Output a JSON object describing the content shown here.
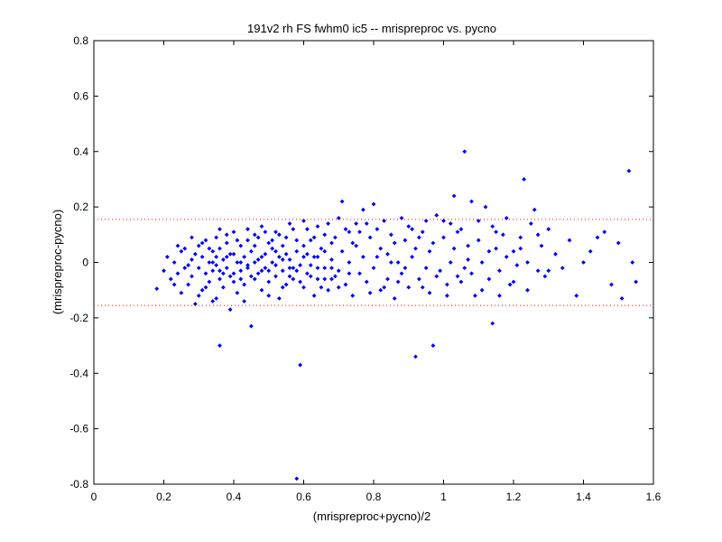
{
  "chart_data": {
    "type": "scatter",
    "title": "191v2 rh FS fwhm0 ic5 -- mrispreproc vs. pycno",
    "xlabel": "(mrispreproc+pycno)/2",
    "ylabel": "(mrispreproc-pycno)",
    "xlim": [
      0,
      1.6
    ],
    "ylim": [
      -0.8,
      0.8
    ],
    "xticks": [
      "0",
      "0.2",
      "0.4",
      "0.6",
      "0.8",
      "1",
      "1.2",
      "1.4",
      "1.6"
    ],
    "yticks": [
      "0.8",
      "0.6",
      "0.4",
      "0.2",
      "0",
      "-0.2",
      "-0.4",
      "-0.6",
      "-0.8"
    ],
    "grid": false,
    "marker_color": "#0000ff",
    "reference_lines": [
      {
        "y": 0.155,
        "color": "#ff0000",
        "style": "dotted"
      },
      {
        "y": -0.155,
        "color": "#ff0000",
        "style": "dotted"
      }
    ],
    "points": [
      [
        0.18,
        -0.095
      ],
      [
        0.2,
        -0.03
      ],
      [
        0.22,
        -0.06
      ],
      [
        0.23,
        0.0
      ],
      [
        0.24,
        -0.04
      ],
      [
        0.25,
        0.04
      ],
      [
        0.25,
        -0.11
      ],
      [
        0.26,
        -0.02
      ],
      [
        0.26,
        0.05
      ],
      [
        0.27,
        -0.08
      ],
      [
        0.28,
        0.01
      ],
      [
        0.28,
        -0.05
      ],
      [
        0.29,
        0.03
      ],
      [
        0.29,
        -0.15
      ],
      [
        0.3,
        -0.02
      ],
      [
        0.3,
        0.06
      ],
      [
        0.31,
        -0.1
      ],
      [
        0.31,
        0.02
      ],
      [
        0.32,
        -0.04
      ],
      [
        0.32,
        0.08
      ],
      [
        0.33,
        0.0
      ],
      [
        0.33,
        -0.07
      ],
      [
        0.34,
        0.04
      ],
      [
        0.34,
        -0.03
      ],
      [
        0.35,
        0.09
      ],
      [
        0.35,
        -0.13
      ],
      [
        0.35,
        -0.01
      ],
      [
        0.36,
        -0.3
      ],
      [
        0.36,
        0.05
      ],
      [
        0.36,
        -0.06
      ],
      [
        0.37,
        0.01
      ],
      [
        0.37,
        -0.09
      ],
      [
        0.38,
        0.07
      ],
      [
        0.38,
        -0.02
      ],
      [
        0.39,
        0.03
      ],
      [
        0.39,
        -0.05
      ],
      [
        0.4,
        0.11
      ],
      [
        0.4,
        -0.04
      ],
      [
        0.41,
        0.0
      ],
      [
        0.41,
        -0.11
      ],
      [
        0.42,
        0.06
      ],
      [
        0.42,
        -0.03
      ],
      [
        0.43,
        0.02
      ],
      [
        0.43,
        -0.08
      ],
      [
        0.44,
        0.08
      ],
      [
        0.44,
        -0.01
      ],
      [
        0.45,
        -0.23
      ],
      [
        0.45,
        0.04
      ],
      [
        0.46,
        -0.06
      ],
      [
        0.46,
        0.1
      ],
      [
        0.47,
        0.01
      ],
      [
        0.47,
        -0.04
      ],
      [
        0.48,
        0.13
      ],
      [
        0.48,
        -0.1
      ],
      [
        0.49,
        0.03
      ],
      [
        0.49,
        -0.02
      ],
      [
        0.5,
        0.07
      ],
      [
        0.5,
        -0.07
      ],
      [
        0.51,
        0.0
      ],
      [
        0.51,
        0.05
      ],
      [
        0.52,
        -0.05
      ],
      [
        0.52,
        0.11
      ],
      [
        0.53,
        0.02
      ],
      [
        0.53,
        -0.13
      ],
      [
        0.54,
        0.06
      ],
      [
        0.54,
        -0.03
      ],
      [
        0.55,
        0.09
      ],
      [
        0.55,
        -0.08
      ],
      [
        0.56,
        0.01
      ],
      [
        0.56,
        -0.02
      ],
      [
        0.57,
        0.12
      ],
      [
        0.57,
        -0.06
      ],
      [
        0.58,
        -0.78
      ],
      [
        0.58,
        0.04
      ],
      [
        0.59,
        -0.37
      ],
      [
        0.59,
        -0.01
      ],
      [
        0.6,
        0.15
      ],
      [
        0.6,
        -0.09
      ],
      [
        0.61,
        0.03
      ],
      [
        0.61,
        -0.04
      ],
      [
        0.62,
        0.08
      ],
      [
        0.63,
        -0.12
      ],
      [
        0.63,
        0.02
      ],
      [
        0.64,
        0.13
      ],
      [
        0.64,
        -0.06
      ],
      [
        0.65,
        0.05
      ],
      [
        0.66,
        -0.02
      ],
      [
        0.66,
        0.1
      ],
      [
        0.67,
        -0.1
      ],
      [
        0.68,
        0.01
      ],
      [
        0.68,
        0.07
      ],
      [
        0.69,
        -0.05
      ],
      [
        0.7,
        0.16
      ],
      [
        0.7,
        -0.03
      ],
      [
        0.71,
        0.22
      ],
      [
        0.71,
        0.04
      ],
      [
        0.72,
        -0.08
      ],
      [
        0.73,
        0.11
      ],
      [
        0.73,
        0.0
      ],
      [
        0.74,
        -0.12
      ],
      [
        0.75,
        0.06
      ],
      [
        0.75,
        0.14
      ],
      [
        0.76,
        -0.04
      ],
      [
        0.77,
        0.19
      ],
      [
        0.77,
        0.02
      ],
      [
        0.78,
        -0.07
      ],
      [
        0.79,
        0.09
      ],
      [
        0.8,
        0.21
      ],
      [
        0.8,
        -0.02
      ],
      [
        0.81,
        0.12
      ],
      [
        0.82,
        -0.1
      ],
      [
        0.82,
        0.05
      ],
      [
        0.83,
        0.15
      ],
      [
        0.84,
        -0.06
      ],
      [
        0.84,
        0.03
      ],
      [
        0.85,
        0.1
      ],
      [
        0.86,
        -0.13
      ],
      [
        0.86,
        0.07
      ],
      [
        0.87,
        0.0
      ],
      [
        0.88,
        0.16
      ],
      [
        0.88,
        -0.04
      ],
      [
        0.89,
        0.08
      ],
      [
        0.9,
        -0.09
      ],
      [
        0.9,
        0.13
      ],
      [
        0.91,
        0.02
      ],
      [
        0.92,
        -0.34
      ],
      [
        0.92,
        0.05
      ],
      [
        0.93,
        -0.06
      ],
      [
        0.94,
        0.11
      ],
      [
        0.95,
        -0.02
      ],
      [
        0.95,
        0.15
      ],
      [
        0.96,
        -0.11
      ],
      [
        0.97,
        -0.3
      ],
      [
        0.97,
        0.07
      ],
      [
        0.98,
        0.17
      ],
      [
        0.99,
        -0.03
      ],
      [
        1.0,
        0.09
      ],
      [
        1.01,
        -0.08
      ],
      [
        1.02,
        0.14
      ],
      [
        1.02,
        0.0
      ],
      [
        1.03,
        0.24
      ],
      [
        1.04,
        -0.05
      ],
      [
        1.05,
        0.12
      ],
      [
        1.06,
        0.4
      ],
      [
        1.06,
        -0.02
      ],
      [
        1.07,
        0.06
      ],
      [
        1.08,
        0.22
      ],
      [
        1.09,
        -0.12
      ],
      [
        1.1,
        0.08
      ],
      [
        1.11,
        0.0
      ],
      [
        1.12,
        0.2
      ],
      [
        1.13,
        -0.06
      ],
      [
        1.14,
        -0.22
      ],
      [
        1.14,
        0.13
      ],
      [
        1.15,
        0.05
      ],
      [
        1.16,
        -0.03
      ],
      [
        1.17,
        0.1
      ],
      [
        1.18,
        0.16
      ],
      [
        1.19,
        -0.08
      ],
      [
        1.2,
        0.04
      ],
      [
        1.21,
        -0.01
      ],
      [
        1.22,
        0.09
      ],
      [
        1.23,
        0.3
      ],
      [
        1.24,
        -0.1
      ],
      [
        1.25,
        0.14
      ],
      [
        1.26,
        0.19
      ],
      [
        1.27,
        -0.03
      ],
      [
        1.28,
        0.06
      ],
      [
        1.29,
        -0.05
      ],
      [
        1.3,
        0.12
      ],
      [
        1.32,
        0.03
      ],
      [
        1.34,
        -0.02
      ],
      [
        1.36,
        0.08
      ],
      [
        1.38,
        -0.12
      ],
      [
        1.4,
        0.0
      ],
      [
        1.42,
        0.04
      ],
      [
        1.44,
        0.09
      ],
      [
        1.46,
        0.11
      ],
      [
        1.48,
        -0.08
      ],
      [
        1.5,
        0.07
      ],
      [
        1.51,
        -0.13
      ],
      [
        1.53,
        0.33
      ],
      [
        1.54,
        0.0
      ],
      [
        1.55,
        -0.07
      ],
      [
        0.21,
        0.02
      ],
      [
        0.23,
        -0.08
      ],
      [
        0.24,
        0.06
      ],
      [
        0.27,
        -0.01
      ],
      [
        0.28,
        0.09
      ],
      [
        0.3,
        -0.12
      ],
      [
        0.31,
        0.07
      ],
      [
        0.32,
        -0.09
      ],
      [
        0.33,
        0.05
      ],
      [
        0.34,
        -0.14
      ],
      [
        0.35,
        0.02
      ],
      [
        0.36,
        0.12
      ],
      [
        0.37,
        -0.04
      ],
      [
        0.38,
        0.1
      ],
      [
        0.39,
        -0.17
      ],
      [
        0.4,
        0.03
      ],
      [
        0.41,
        0.08
      ],
      [
        0.42,
        -0.06
      ],
      [
        0.43,
        -0.14
      ],
      [
        0.44,
        0.12
      ],
      [
        0.45,
        -0.05
      ],
      [
        0.46,
        0.0
      ],
      [
        0.47,
        0.09
      ],
      [
        0.48,
        -0.03
      ],
      [
        0.49,
        0.11
      ],
      [
        0.5,
        -0.12
      ],
      [
        0.51,
        0.08
      ],
      [
        0.52,
        -0.01
      ],
      [
        0.53,
        0.1
      ],
      [
        0.54,
        -0.09
      ],
      [
        0.55,
        0.03
      ],
      [
        0.56,
        0.14
      ],
      [
        0.57,
        -0.02
      ],
      [
        0.58,
        0.08
      ],
      [
        0.59,
        -0.07
      ],
      [
        0.6,
        0.02
      ],
      [
        0.61,
        0.12
      ],
      [
        0.62,
        -0.05
      ],
      [
        0.63,
        0.09
      ],
      [
        0.64,
        -0.02
      ],
      [
        0.65,
        -0.09
      ],
      [
        0.66,
        0.04
      ],
      [
        0.67,
        0.14
      ],
      [
        0.68,
        -0.06
      ],
      [
        0.69,
        0.09
      ],
      [
        0.7,
        -0.09
      ],
      [
        0.72,
        0.12
      ],
      [
        0.73,
        -0.04
      ],
      [
        0.74,
        0.07
      ],
      [
        0.76,
        0.11
      ],
      [
        0.78,
        0.14
      ],
      [
        0.79,
        -0.11
      ],
      [
        0.81,
        0.02
      ],
      [
        0.83,
        -0.09
      ],
      [
        0.85,
        0.0
      ],
      [
        0.87,
        -0.07
      ],
      [
        0.89,
        -0.02
      ],
      [
        0.91,
        0.12
      ],
      [
        0.93,
        0.09
      ],
      [
        0.94,
        -0.09
      ],
      [
        0.96,
        0.04
      ],
      [
        0.98,
        -0.05
      ],
      [
        1.0,
        0.15
      ],
      [
        1.01,
        -0.12
      ],
      [
        1.03,
        0.05
      ],
      [
        1.04,
        0.11
      ],
      [
        1.05,
        -0.07
      ],
      [
        1.07,
        0.01
      ],
      [
        1.08,
        -0.04
      ],
      [
        1.1,
        0.15
      ],
      [
        1.11,
        -0.1
      ],
      [
        1.13,
        0.04
      ],
      [
        1.15,
        0.11
      ],
      [
        1.16,
        -0.12
      ],
      [
        1.18,
        0.02
      ],
      [
        1.2,
        -0.07
      ],
      [
        1.22,
        0.05
      ],
      [
        1.24,
        0.0
      ],
      [
        1.27,
        0.1
      ],
      [
        1.3,
        -0.03
      ],
      [
        0.34,
        0.0
      ],
      [
        0.36,
        -0.03
      ],
      [
        0.38,
        0.02
      ],
      [
        0.4,
        -0.07
      ],
      [
        0.42,
        0.0
      ],
      [
        0.44,
        -0.02
      ],
      [
        0.46,
        0.06
      ],
      [
        0.48,
        0.02
      ],
      [
        0.5,
        -0.03
      ],
      [
        0.52,
        0.04
      ],
      [
        0.54,
        0.01
      ],
      [
        0.56,
        -0.05
      ],
      [
        0.58,
        -0.03
      ],
      [
        0.6,
        0.06
      ],
      [
        0.62,
        -0.01
      ],
      [
        0.64,
        0.02
      ],
      [
        0.66,
        -0.06
      ],
      [
        0.68,
        -0.02
      ]
    ]
  }
}
